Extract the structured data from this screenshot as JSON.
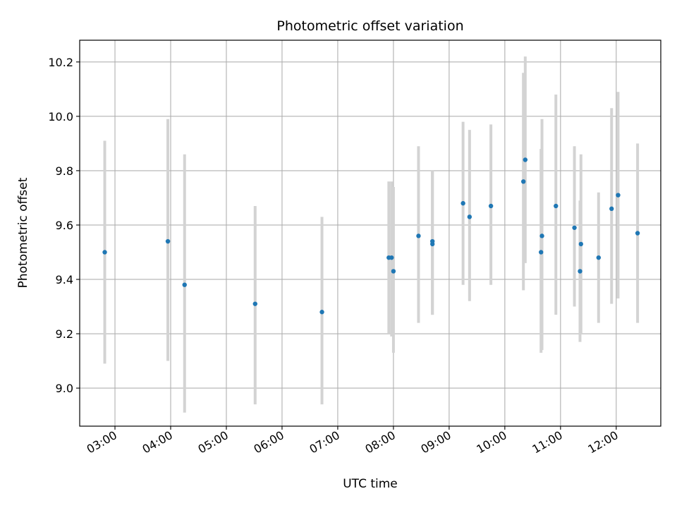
{
  "chart_data": {
    "type": "scatter",
    "title": "Photometric offset variation",
    "xlabel": "UTC time",
    "ylabel": "Photometric offset",
    "grid": true,
    "xlim": [
      "02:22",
      "12:48"
    ],
    "ylim": [
      8.86,
      10.28
    ],
    "x_ticks": [
      "03:00",
      "04:00",
      "05:00",
      "06:00",
      "07:00",
      "08:00",
      "09:00",
      "10:00",
      "11:00",
      "12:00"
    ],
    "y_ticks": [
      "9.0",
      "9.2",
      "9.4",
      "9.6",
      "9.8",
      "10.0",
      "10.2"
    ],
    "colors": {
      "points": "#1f77b4",
      "error_bars": "#d3d3d3"
    },
    "points": [
      {
        "x": "02:49",
        "y": 9.5,
        "ylow": 9.09,
        "yhigh": 9.91
      },
      {
        "x": "03:57",
        "y": 9.54,
        "ylow": 9.1,
        "yhigh": 9.99
      },
      {
        "x": "04:15",
        "y": 9.38,
        "ylow": 8.91,
        "yhigh": 9.86
      },
      {
        "x": "05:31",
        "y": 9.31,
        "ylow": 8.94,
        "yhigh": 9.67
      },
      {
        "x": "06:43",
        "y": 9.28,
        "ylow": 8.94,
        "yhigh": 9.63
      },
      {
        "x": "07:55",
        "y": 9.48,
        "ylow": 9.2,
        "yhigh": 9.76
      },
      {
        "x": "07:58",
        "y": 9.48,
        "ylow": 9.19,
        "yhigh": 9.76
      },
      {
        "x": "08:00",
        "y": 9.43,
        "ylow": 9.13,
        "yhigh": 9.74
      },
      {
        "x": "08:27",
        "y": 9.56,
        "ylow": 9.24,
        "yhigh": 9.89
      },
      {
        "x": "08:42",
        "y": 9.53,
        "ylow": 9.27,
        "yhigh": 9.8
      },
      {
        "x": "08:42",
        "y": 9.54,
        "ylow": 9.27,
        "yhigh": 9.8
      },
      {
        "x": "09:15",
        "y": 9.68,
        "ylow": 9.38,
        "yhigh": 9.98
      },
      {
        "x": "09:22",
        "y": 9.63,
        "ylow": 9.32,
        "yhigh": 9.95
      },
      {
        "x": "09:45",
        "y": 9.67,
        "ylow": 9.38,
        "yhigh": 9.97
      },
      {
        "x": "10:20",
        "y": 9.76,
        "ylow": 9.36,
        "yhigh": 10.16
      },
      {
        "x": "10:22",
        "y": 9.84,
        "ylow": 9.46,
        "yhigh": 10.22
      },
      {
        "x": "10:39",
        "y": 9.5,
        "ylow": 9.13,
        "yhigh": 9.88
      },
      {
        "x": "10:40",
        "y": 9.56,
        "ylow": 9.14,
        "yhigh": 9.99
      },
      {
        "x": "10:55",
        "y": 9.67,
        "ylow": 9.27,
        "yhigh": 10.08
      },
      {
        "x": "11:15",
        "y": 9.59,
        "ylow": 9.3,
        "yhigh": 9.89
      },
      {
        "x": "11:21",
        "y": 9.43,
        "ylow": 9.17,
        "yhigh": 9.69
      },
      {
        "x": "11:22",
        "y": 9.53,
        "ylow": 9.2,
        "yhigh": 9.86
      },
      {
        "x": "11:41",
        "y": 9.48,
        "ylow": 9.24,
        "yhigh": 9.72
      },
      {
        "x": "11:55",
        "y": 9.66,
        "ylow": 9.31,
        "yhigh": 10.03
      },
      {
        "x": "12:02",
        "y": 9.71,
        "ylow": 9.33,
        "yhigh": 10.09
      },
      {
        "x": "12:23",
        "y": 9.57,
        "ylow": 9.24,
        "yhigh": 9.9
      }
    ]
  }
}
